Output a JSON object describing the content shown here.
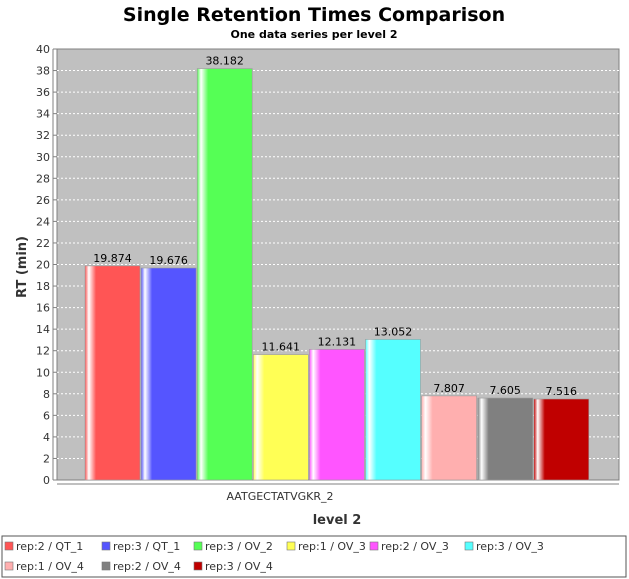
{
  "chart_data": {
    "type": "bar",
    "title": "Single Retention Times Comparison",
    "subtitle": "One data series per level 2",
    "xlabel": "level 2",
    "ylabel": "RT (min)",
    "ylim": [
      0,
      40
    ],
    "ytick_step": 2,
    "grid": true,
    "legend_placement": "bottom",
    "categories": [
      "AATGECTATVGKR_2"
    ],
    "series": [
      {
        "name": "rep:2 / QT_1",
        "color": "#ff5555",
        "values": [
          19.874
        ],
        "label": "19.874"
      },
      {
        "name": "rep:3 / QT_1",
        "color": "#5555ff",
        "values": [
          19.676
        ],
        "label": "19.676"
      },
      {
        "name": "rep:3 / OV_2",
        "color": "#55ff55",
        "values": [
          38.182
        ],
        "label": "38.182"
      },
      {
        "name": "rep:1 / OV_3",
        "color": "#ffff55",
        "values": [
          11.641
        ],
        "label": "11.641"
      },
      {
        "name": "rep:2 / OV_3",
        "color": "#ff55ff",
        "values": [
          12.131
        ],
        "label": "12.131"
      },
      {
        "name": "rep:3 / OV_3",
        "color": "#55ffff",
        "values": [
          13.052
        ],
        "label": "13.052"
      },
      {
        "name": "rep:1 / OV_4",
        "color": "#ffafaf",
        "values": [
          7.807
        ],
        "label": "7.807"
      },
      {
        "name": "rep:2 / OV_4",
        "color": "#808080",
        "values": [
          7.605
        ],
        "label": "7.605"
      },
      {
        "name": "rep:3 / OV_4",
        "color": "#c00000",
        "values": [
          7.516
        ],
        "label": "7.516"
      }
    ]
  }
}
